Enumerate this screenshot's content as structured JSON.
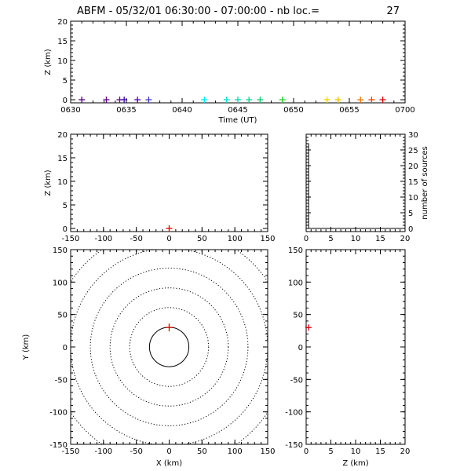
{
  "title": {
    "left": "ABFM - 05/32/01 06:30:00 - 07:00:00 - nb loc.=",
    "count": "27"
  },
  "chart_data": [
    {
      "id": "time_height",
      "type": "scatter",
      "xlabel": "Time (UT)",
      "ylabel": "Z (km)",
      "xlim": [
        "06:30",
        "07:00"
      ],
      "ylim": [
        0,
        20
      ],
      "x_ticks": [
        "0630",
        "0635",
        "0640",
        "0645",
        "0650",
        "0655",
        "0700"
      ],
      "y_ticks": [
        "0",
        "5",
        "10",
        "15",
        "20"
      ],
      "points": [
        {
          "t": "06:31:00",
          "z": 0,
          "color": "#5a0082"
        },
        {
          "t": "06:33:12",
          "z": 0,
          "color": "#5e008e"
        },
        {
          "t": "06:34:24",
          "z": 0,
          "color": "#6a00a0"
        },
        {
          "t": "06:34:48",
          "z": 0,
          "color": "#3a00b0"
        },
        {
          "t": "06:36:00",
          "z": 0,
          "color": "#4a00b8"
        },
        {
          "t": "06:37:00",
          "z": 0,
          "color": "#3c3cd0"
        },
        {
          "t": "06:42:00",
          "z": 0,
          "color": "#00e8ff"
        },
        {
          "t": "06:44:00",
          "z": 0,
          "color": "#00e0d0"
        },
        {
          "t": "06:45:00",
          "z": 0,
          "color": "#00d8b0"
        },
        {
          "t": "06:46:00",
          "z": 0,
          "color": "#00d890"
        },
        {
          "t": "06:47:00",
          "z": 0,
          "color": "#00d470"
        },
        {
          "t": "06:49:00",
          "z": 0,
          "color": "#20d030"
        },
        {
          "t": "06:53:00",
          "z": 0,
          "color": "#ffd000"
        },
        {
          "t": "06:54:00",
          "z": 0,
          "color": "#ffc000"
        },
        {
          "t": "06:56:00",
          "z": 0,
          "color": "#ff7800"
        },
        {
          "t": "06:57:00",
          "z": 0,
          "color": "#ff4000"
        },
        {
          "t": "06:58:00",
          "z": 0,
          "color": "#e00000"
        }
      ]
    },
    {
      "id": "x_z",
      "type": "scatter",
      "ylabel": "Z (km)",
      "xlim": [
        -150,
        150
      ],
      "ylim": [
        0,
        20
      ],
      "x_ticks": [
        -150,
        -100,
        -50,
        0,
        50,
        100,
        150
      ],
      "y_ticks": [
        0,
        5,
        10,
        15,
        20
      ],
      "points": [
        {
          "x": 0,
          "z": 0
        }
      ]
    },
    {
      "id": "height_histogram",
      "type": "bar",
      "ylabel": "number of sources",
      "xlim": [
        0,
        20
      ],
      "ylim": [
        0,
        30
      ],
      "x_ticks": [
        0,
        5,
        10,
        15,
        20
      ],
      "y_ticks": [
        0,
        5,
        10,
        15,
        20,
        25,
        30
      ],
      "bins": [
        {
          "z_from": 0,
          "z_to": 0.5,
          "count": 27
        }
      ]
    },
    {
      "id": "x_y_plan",
      "type": "scatter",
      "xlabel": "X (km)",
      "ylabel": "Y (km)",
      "xlim": [
        -150,
        150
      ],
      "ylim": [
        -150,
        150
      ],
      "x_ticks": [
        -150,
        -100,
        -50,
        0,
        50,
        100,
        150
      ],
      "y_ticks": [
        -150,
        -100,
        -50,
        0,
        50,
        100,
        150
      ],
      "range_rings_km": [
        30,
        60,
        90,
        120,
        150,
        180
      ],
      "points": [
        {
          "x": 0,
          "y": 30
        }
      ]
    },
    {
      "id": "z_y",
      "type": "scatter",
      "xlabel": "Z (km)",
      "xlim": [
        0,
        20
      ],
      "ylim": [
        -150,
        150
      ],
      "x_ticks": [
        0,
        5,
        10,
        15,
        20
      ],
      "y_ticks": [
        -150,
        -100,
        -50,
        0,
        50,
        100,
        150
      ],
      "points": [
        {
          "z": 0,
          "y": 30
        }
      ]
    }
  ]
}
